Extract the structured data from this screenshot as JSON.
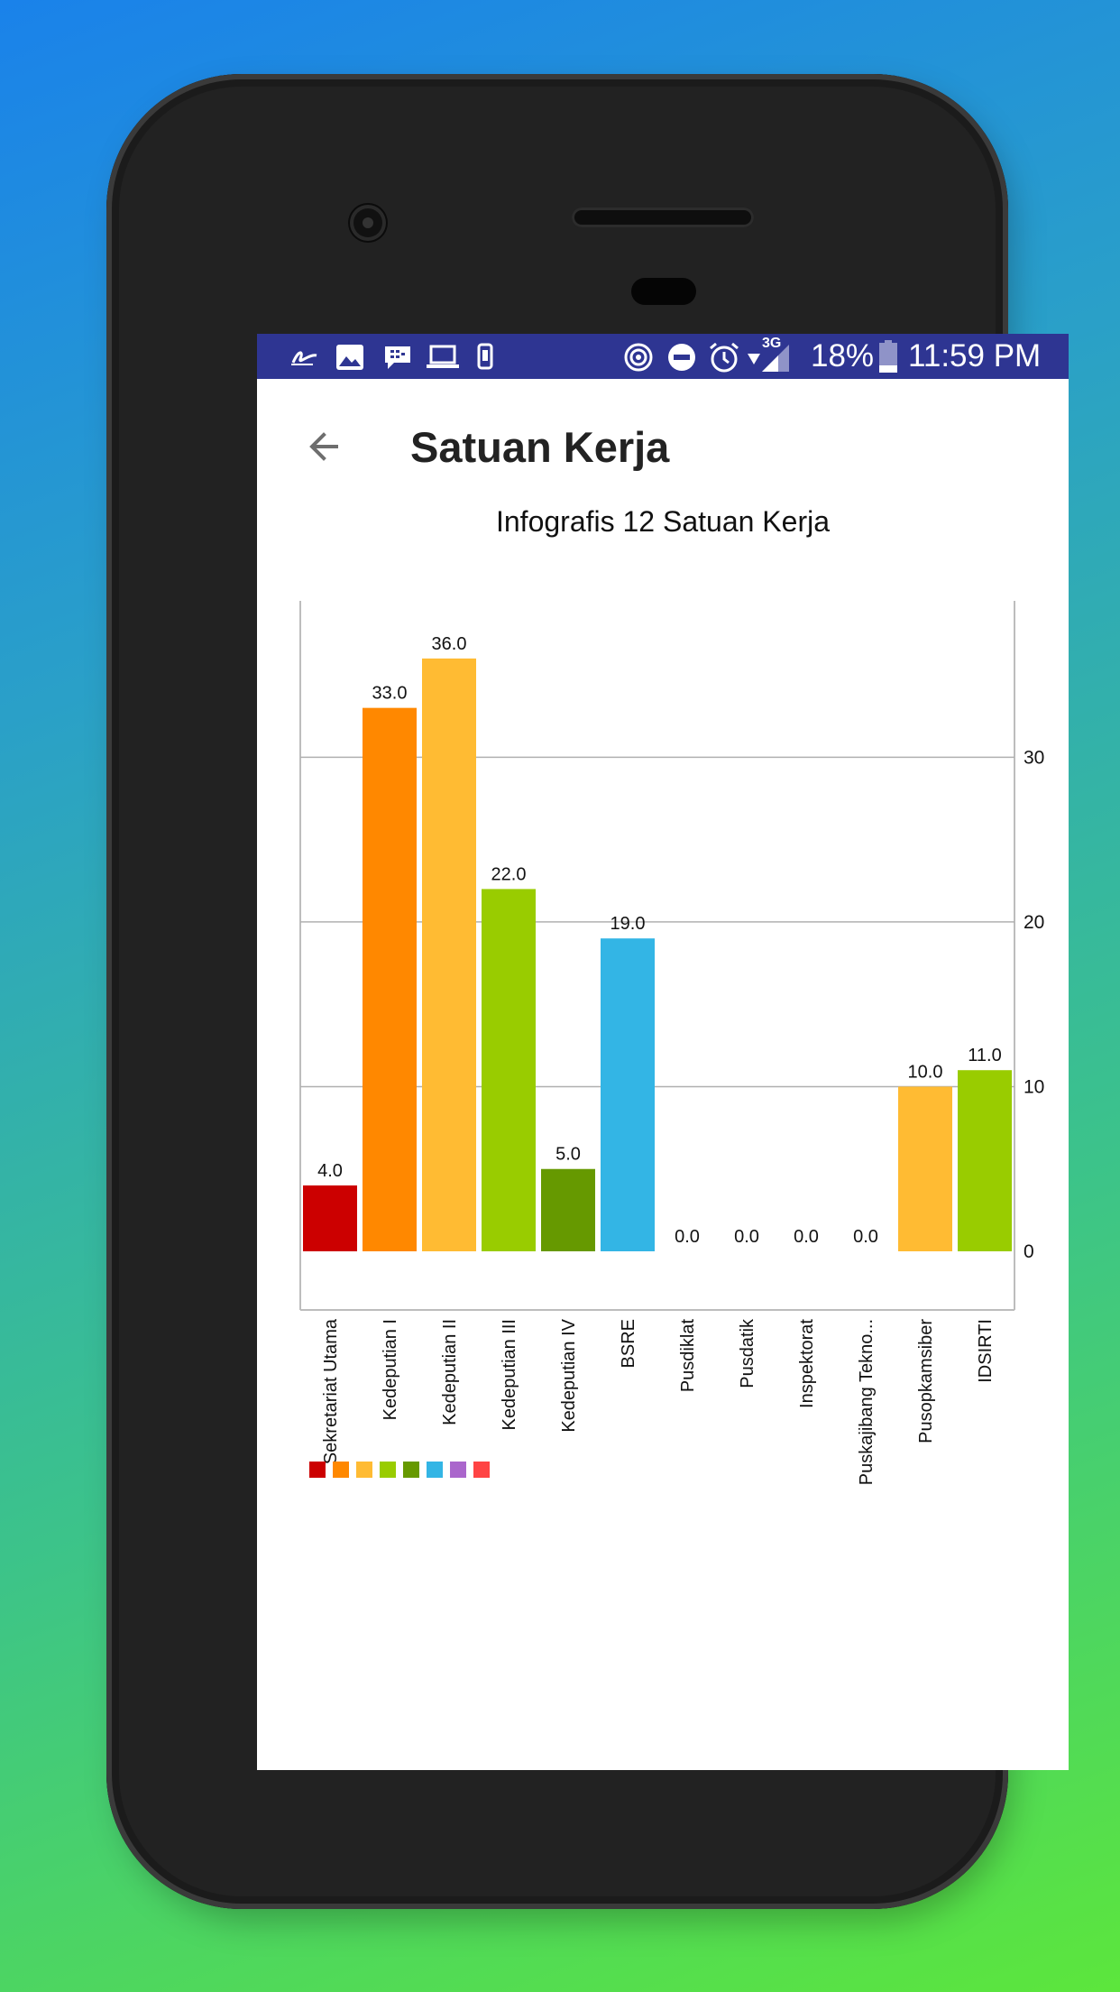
{
  "status_bar": {
    "battery": "18%",
    "time": "11:59 PM",
    "network": "3G",
    "left_icons": [
      "app-icon",
      "image-icon",
      "bbm-icon",
      "laptop-icon",
      "phone-icon"
    ],
    "right_icons": [
      "hotspot-icon",
      "dnd-icon",
      "alarm-icon",
      "wifi-icon",
      "signal-icon",
      "battery-icon"
    ]
  },
  "header": {
    "title": "Satuan Kerja",
    "back_icon": "arrow-back-icon"
  },
  "chart_data": {
    "type": "bar",
    "title": "Infografis 12 Satuan Kerja",
    "categories": [
      "Sekretariat Utama",
      "Kedeputian I",
      "Kedeputian II",
      "Kedeputian III",
      "Kedeputian IV",
      "BSRE",
      "Pusdiklat",
      "Pusdatik",
      "Inspektorat",
      "Puskajibang Tekno...",
      "Pusopkamsiber",
      "IDSIRTI"
    ],
    "values": [
      4.0,
      33.0,
      36.0,
      22.0,
      5.0,
      19.0,
      0.0,
      0.0,
      0.0,
      0.0,
      10.0,
      11.0
    ],
    "value_labels": [
      "4.0",
      "33.0",
      "36.0",
      "22.0",
      "5.0",
      "19.0",
      "0.0",
      "0.0",
      "0.0",
      "0.0",
      "10.0",
      "11.0"
    ],
    "colors": [
      "#cc0000",
      "#ff8800",
      "#ffbb33",
      "#99cc00",
      "#669900",
      "#33b5e5",
      "#aa66cc",
      "#ff4444",
      "#cc0000",
      "#ff8800",
      "#ffbb33",
      "#99cc00"
    ],
    "y_ticks": [
      "0",
      "10",
      "20",
      "30"
    ],
    "ylim": [
      0,
      39.5
    ],
    "grid": true,
    "y_axis_position": "right",
    "legend_colors": [
      "#cc0000",
      "#ff8800",
      "#ffbb33",
      "#99cc00",
      "#669900",
      "#33b5e5",
      "#aa66cc",
      "#ff4444"
    ],
    "legend_placement": "bottom-left"
  }
}
